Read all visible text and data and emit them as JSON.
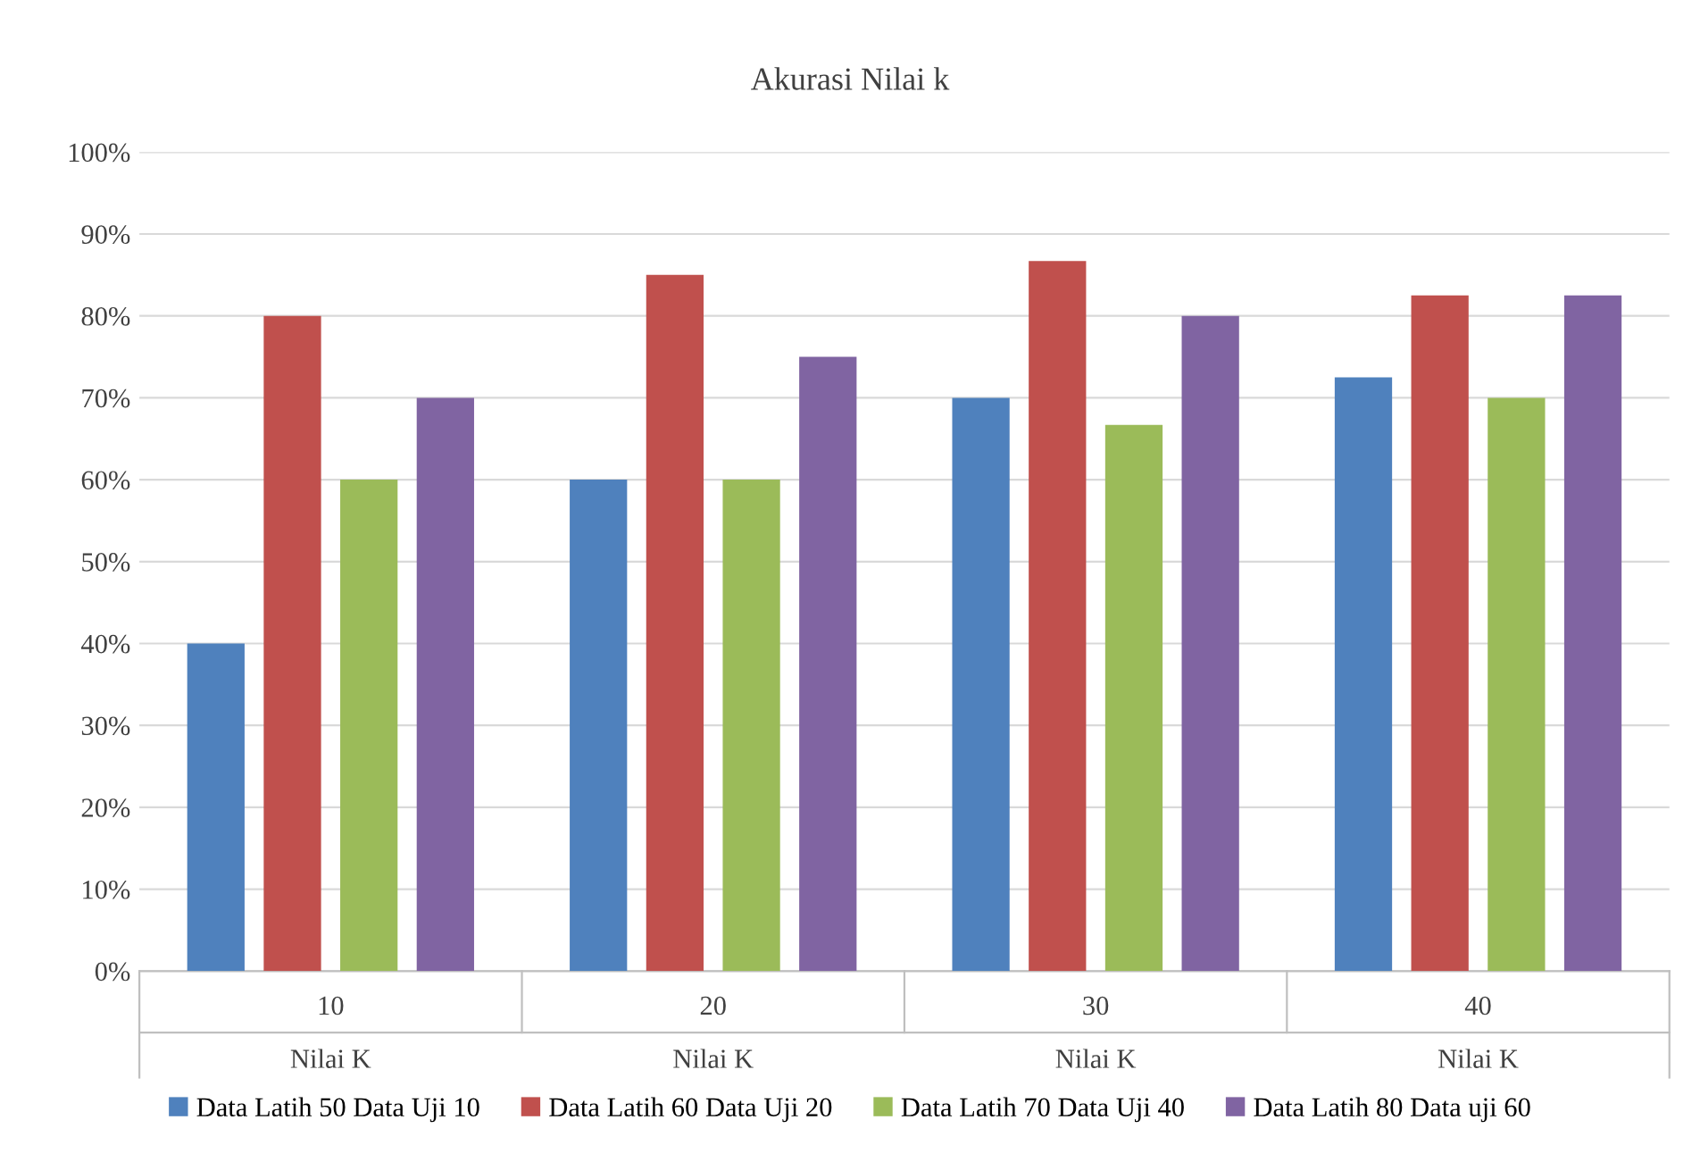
{
  "chart_data": {
    "type": "bar",
    "title": "Akurasi Nilai k",
    "categories": [
      "10",
      "20",
      "30",
      "40"
    ],
    "series": [
      {
        "name": "Data Latih 50 Data Uji 10",
        "color": "#4f81bd",
        "values": [
          40,
          60,
          70,
          72.5
        ]
      },
      {
        "name": "Data Latih 60 Data Uji 20",
        "color": "#c0504d",
        "values": [
          80,
          85,
          86.7,
          82.5
        ]
      },
      {
        "name": "Data Latih 70 Data Uji 40",
        "color": "#9bbb59",
        "values": [
          60,
          60,
          66.7,
          70
        ]
      },
      {
        "name": "Data Latih 80 Data uji 60",
        "color": "#8064a2",
        "values": [
          70,
          75,
          80,
          82.5
        ]
      }
    ],
    "annotations": [
      "Nilai K",
      "Nilai K",
      "Nilai K",
      "Nilai K"
    ],
    "ylim": [
      0,
      100
    ],
    "yticks": [
      {
        "value": 0,
        "label": "0%"
      },
      {
        "value": 10,
        "label": "10%"
      },
      {
        "value": 20,
        "label": "20%"
      },
      {
        "value": 30,
        "label": "30%"
      },
      {
        "value": 40,
        "label": "40%"
      },
      {
        "value": 50,
        "label": "50%"
      },
      {
        "value": 60,
        "label": "60%"
      },
      {
        "value": 70,
        "label": "70%"
      },
      {
        "value": 80,
        "label": "80%"
      },
      {
        "value": 90,
        "label": "90%"
      },
      {
        "value": 100,
        "label": "100%"
      }
    ],
    "grid": "y",
    "legend": "bottom"
  }
}
